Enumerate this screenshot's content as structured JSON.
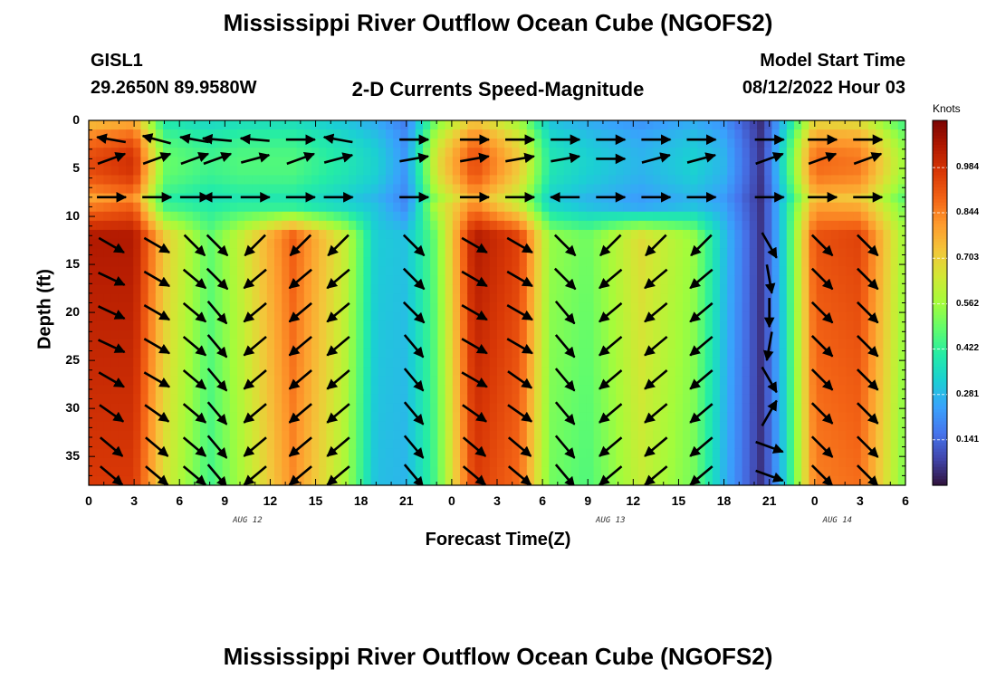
{
  "page": {
    "title_top": "Mississippi River Outflow Ocean Cube (NGOFS2)",
    "title_bottom": "Mississippi River Outflow Ocean Cube (NGOFS2)",
    "station_id": "GISL1",
    "station_coords": "29.2650N  89.9580W",
    "subtitle": "2-D Currents Speed-Magnitude",
    "model_start_label": "Model Start Time",
    "model_start_value": "08/12/2022 Hour 03"
  },
  "chart_data": {
    "type": "heatmap",
    "title": "2-D Currents Speed-Magnitude",
    "xlabel": "Forecast Time(Z)",
    "ylabel": "Depth (ft)",
    "x_tick_labels": [
      "0",
      "3",
      "6",
      "9",
      "12",
      "15",
      "18",
      "21",
      "0",
      "3",
      "6",
      "9",
      "12",
      "15",
      "18",
      "21",
      "0",
      "3",
      "6"
    ],
    "x_date_labels": [
      {
        "text": "AUG 12",
        "at_hours": 10.5
      },
      {
        "text": "AUG 13",
        "at_hours": 34.5
      },
      {
        "text": "AUG 14",
        "at_hours": 49.5
      }
    ],
    "xlim_hours": [
      0,
      54
    ],
    "y_ticks": [
      0,
      5,
      10,
      15,
      20,
      25,
      30,
      35
    ],
    "ylim": [
      0,
      38
    ],
    "y_inverted": true,
    "colorbar": {
      "title": "Knots",
      "ticks": [
        0.141,
        0.281,
        0.422,
        0.562,
        0.703,
        0.844,
        0.984
      ],
      "tick_labels": [
        "0.141",
        "0.281",
        "0.422",
        "0.562",
        "0.703",
        "0.844",
        "0.984"
      ],
      "range": [
        0.0,
        1.13
      ],
      "colormap": [
        "#30123b",
        "#4145ab",
        "#4675ed",
        "#39a2fc",
        "#1bcfd4",
        "#24eca6",
        "#61fc6c",
        "#a4fc3b",
        "#d1e834",
        "#f3c63a",
        "#fe9b2d",
        "#f36315",
        "#d93806",
        "#b11901",
        "#7a0403"
      ]
    },
    "speed_profiles": {
      "columns": [
        {
          "hours": 0,
          "surface": 0.85,
          "deep": 1.05
        },
        {
          "hours": 3,
          "surface": 0.9,
          "deep": 1.05
        },
        {
          "hours": 5,
          "surface": 0.45,
          "deep": 0.72
        },
        {
          "hours": 8,
          "surface": 0.4,
          "deep": 0.48
        },
        {
          "hours": 10,
          "surface": 0.42,
          "deep": 0.62
        },
        {
          "hours": 13.5,
          "surface": 0.42,
          "deep": 0.9
        },
        {
          "hours": 17,
          "surface": 0.35,
          "deep": 0.62
        },
        {
          "hours": 19,
          "surface": 0.3,
          "deep": 0.32
        },
        {
          "hours": 21,
          "surface": 0.2,
          "deep": 0.3
        },
        {
          "hours": 23,
          "surface": 0.6,
          "deep": 0.5
        },
        {
          "hours": 25.5,
          "surface": 0.85,
          "deep": 1.05
        },
        {
          "hours": 28.5,
          "surface": 0.65,
          "deep": 0.95
        },
        {
          "hours": 30.5,
          "surface": 0.35,
          "deep": 0.55
        },
        {
          "hours": 33,
          "surface": 0.3,
          "deep": 0.5
        },
        {
          "hours": 36.5,
          "surface": 0.25,
          "deep": 0.68
        },
        {
          "hours": 40,
          "surface": 0.3,
          "deep": 0.55
        },
        {
          "hours": 42,
          "surface": 0.25,
          "deep": 0.3
        },
        {
          "hours": 44.5,
          "surface": 0.05,
          "deep": 0.05
        },
        {
          "hours": 46,
          "surface": 0.35,
          "deep": 0.35
        },
        {
          "hours": 48,
          "surface": 0.8,
          "deep": 0.92
        },
        {
          "hours": 51,
          "surface": 0.78,
          "deep": 0.95
        },
        {
          "hours": 54,
          "surface": 0.5,
          "deep": 0.55
        }
      ]
    },
    "vector_hours": [
      1.5,
      4.5,
      7,
      8.5,
      11,
      14,
      16.5,
      21.5,
      25.5,
      28.5,
      31.5,
      34.5,
      37.5,
      40.5,
      45,
      48.5,
      51.5
    ],
    "vector_depths": [
      2,
      4,
      8,
      13,
      16.5,
      20,
      23.5,
      27,
      30.5,
      34,
      37
    ],
    "vector_direction_deg": [
      [
        -170,
        -165,
        -170,
        185,
        185,
        0,
        190,
        0,
        0,
        0,
        0,
        0,
        0,
        0,
        0,
        0,
        0
      ],
      [
        -20,
        -20,
        -20,
        -20,
        -15,
        -20,
        -15,
        -10,
        -10,
        -10,
        -10,
        0,
        -15,
        -15,
        -20,
        -20,
        -20
      ],
      [
        0,
        0,
        0,
        180,
        0,
        0,
        0,
        0,
        0,
        0,
        180,
        0,
        0,
        0,
        0,
        0,
        0
      ],
      [
        30,
        30,
        45,
        45,
        135,
        135,
        135,
        45,
        30,
        30,
        45,
        135,
        135,
        135,
        60,
        45,
        45
      ],
      [
        25,
        30,
        40,
        45,
        140,
        140,
        140,
        45,
        30,
        30,
        45,
        140,
        140,
        140,
        80,
        45,
        45
      ],
      [
        25,
        30,
        40,
        50,
        140,
        140,
        140,
        45,
        30,
        30,
        50,
        140,
        140,
        140,
        90,
        45,
        45
      ],
      [
        25,
        30,
        40,
        50,
        140,
        140,
        140,
        50,
        30,
        30,
        50,
        140,
        140,
        140,
        100,
        45,
        45
      ],
      [
        30,
        30,
        40,
        50,
        140,
        140,
        140,
        50,
        30,
        35,
        50,
        140,
        140,
        140,
        60,
        45,
        45
      ],
      [
        35,
        35,
        40,
        50,
        140,
        140,
        140,
        50,
        35,
        35,
        50,
        140,
        140,
        140,
        -60,
        45,
        45
      ],
      [
        40,
        40,
        40,
        50,
        140,
        140,
        140,
        50,
        40,
        40,
        50,
        140,
        140,
        140,
        20,
        45,
        45
      ],
      [
        40,
        40,
        40,
        50,
        140,
        140,
        140,
        50,
        40,
        40,
        50,
        140,
        140,
        140,
        20,
        45,
        45
      ]
    ]
  }
}
